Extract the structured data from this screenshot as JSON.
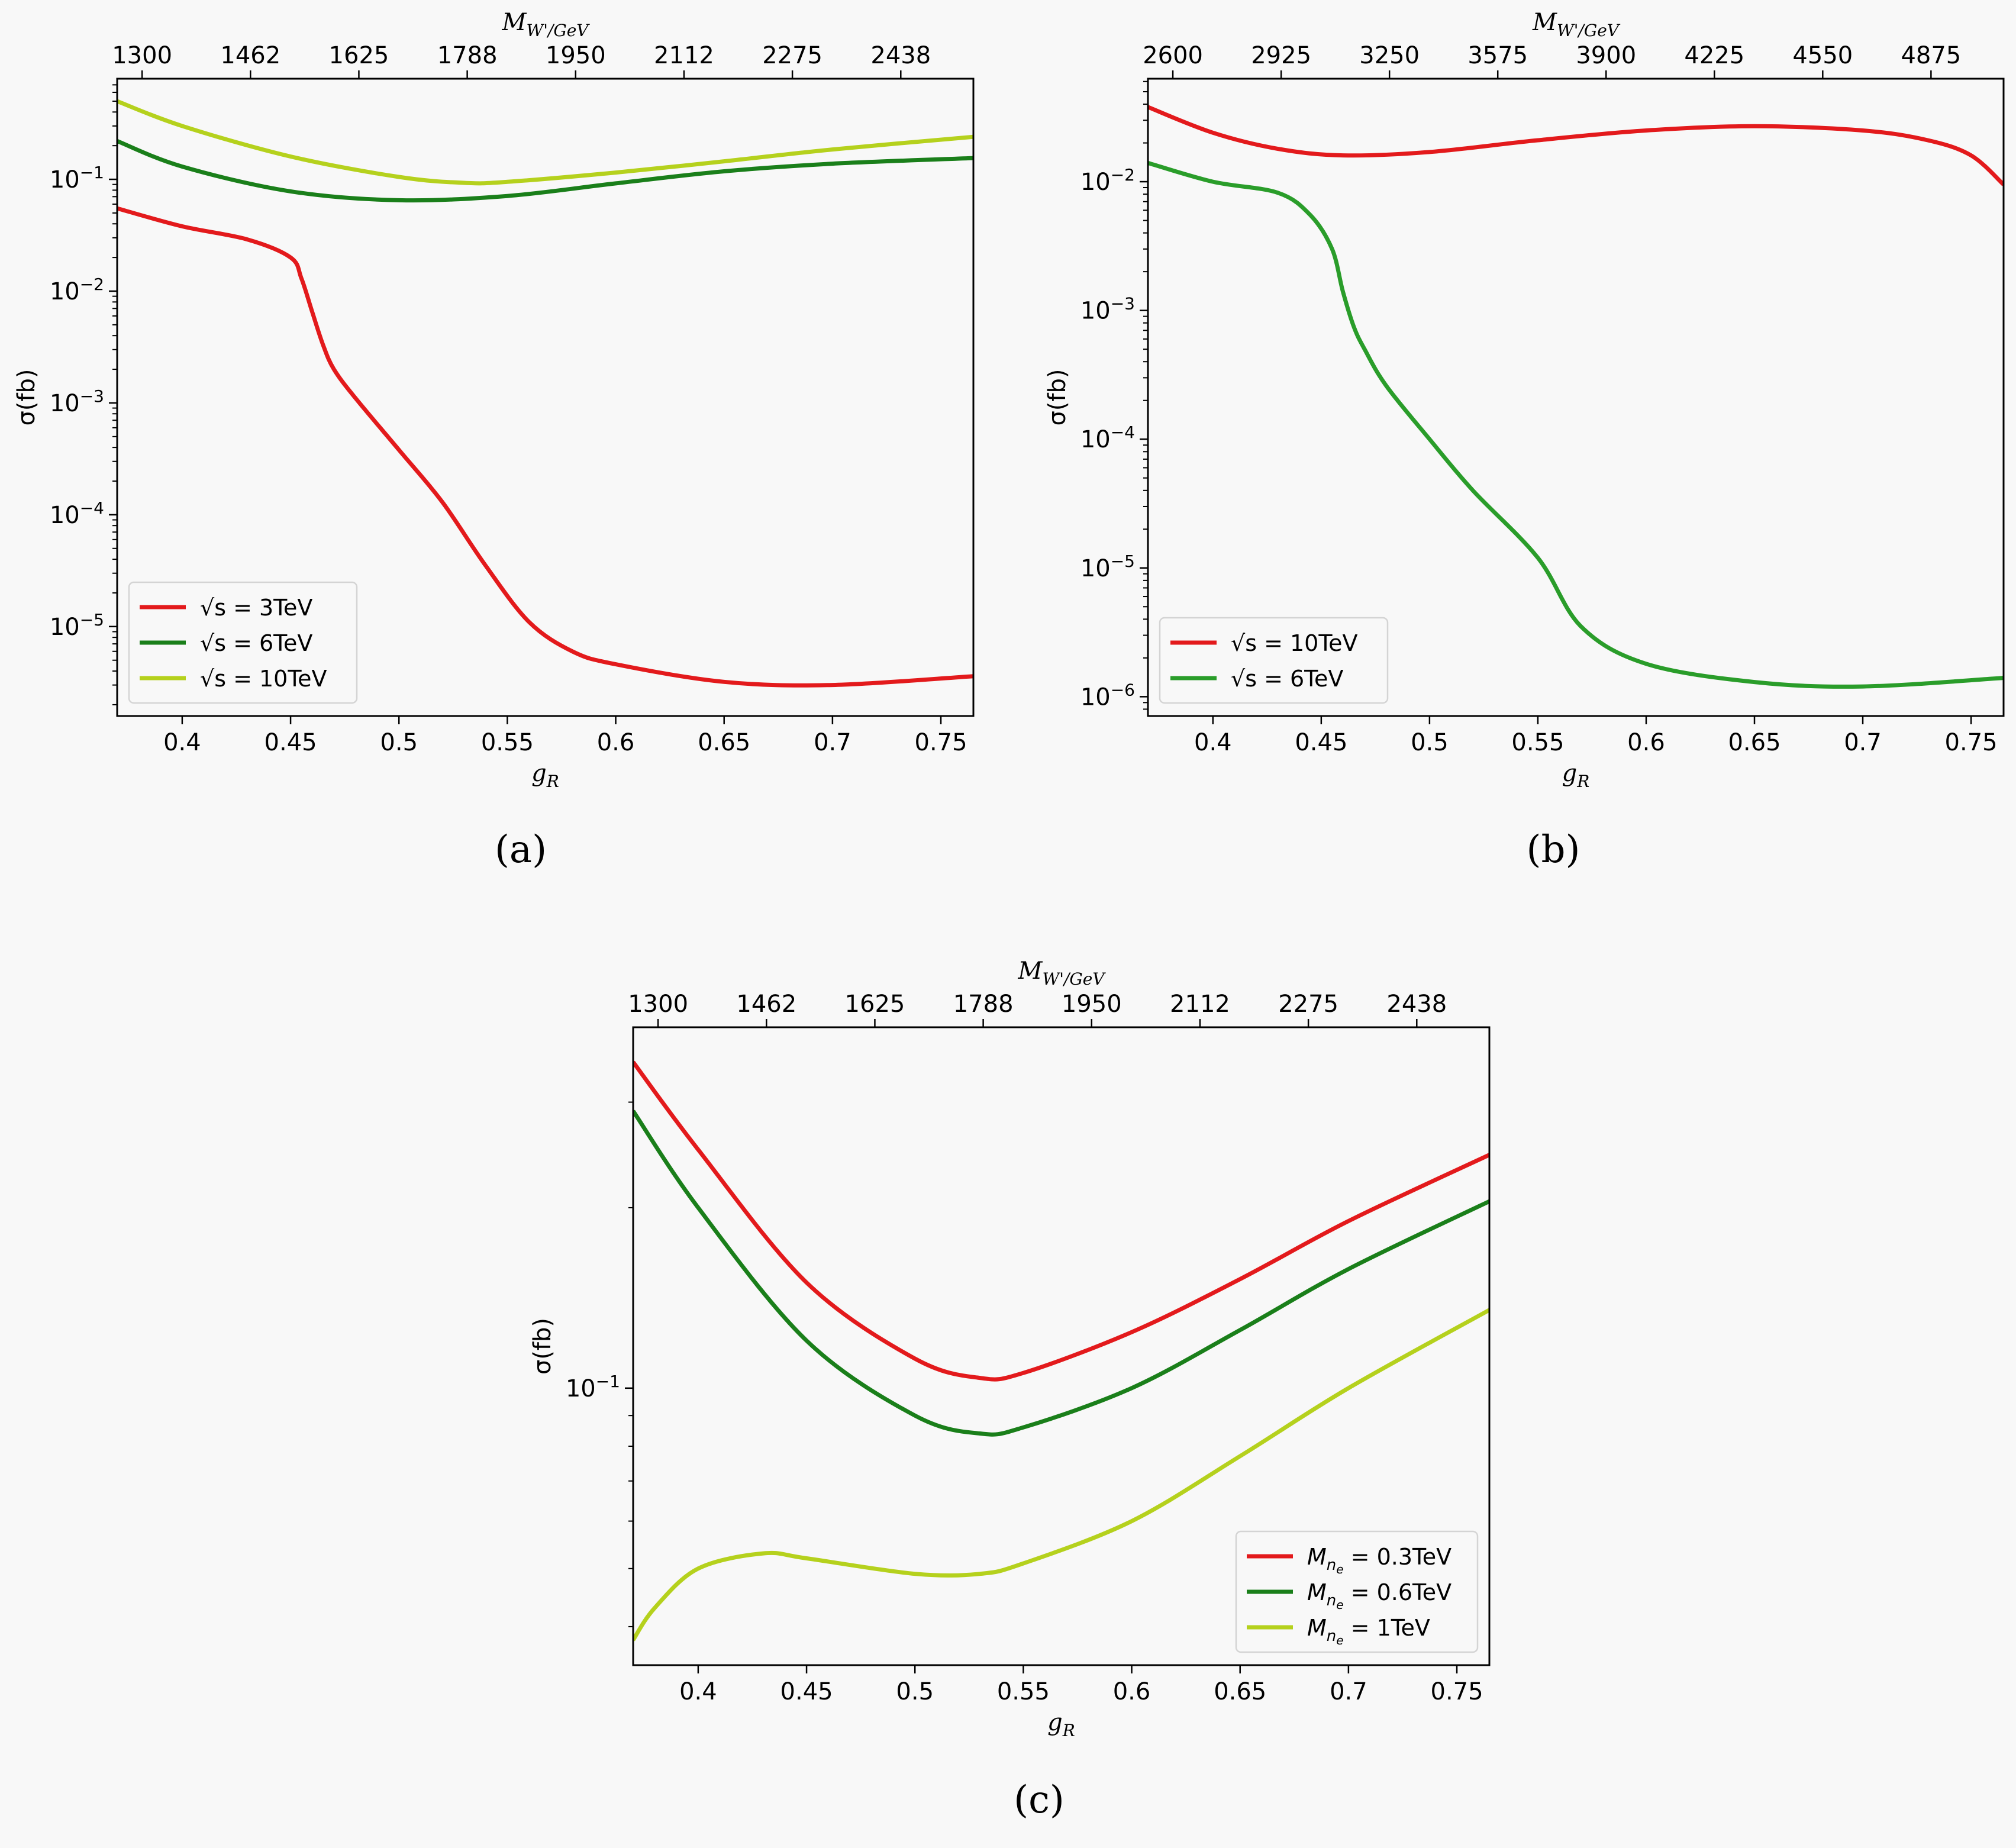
{
  "chart_data": [
    {
      "id": "a",
      "type": "line",
      "caption": "(a)",
      "xlabel": "g_R",
      "x2label": "M_W'/GeV",
      "ylabel": "σ(fb)",
      "yscale": "log",
      "xlim": [
        0.37,
        0.765
      ],
      "ylim_exp": [
        -5.8,
        -0.1
      ],
      "xticks": [
        "0.4",
        "0.45",
        "0.5",
        "0.55",
        "0.6",
        "0.65",
        "0.7",
        "0.75"
      ],
      "x2ticks": [
        "1300",
        "1462",
        "1625",
        "1788",
        "1950",
        "2112",
        "2275",
        "2438"
      ],
      "yticks_exp": [
        "-5",
        "-4",
        "-3",
        "-2",
        "-1"
      ],
      "legend_position": "lower-left",
      "series": [
        {
          "name": "√s = 3TeV",
          "color": "#e31a1c",
          "x": [
            0.37,
            0.4,
            0.43,
            0.45,
            0.455,
            0.46,
            0.465,
            0.47,
            0.48,
            0.5,
            0.52,
            0.54,
            0.56,
            0.58,
            0.6,
            0.65,
            0.7,
            0.765
          ],
          "y": [
            0.055,
            0.038,
            0.029,
            0.02,
            0.013,
            0.0065,
            0.0033,
            0.002,
            0.0011,
            0.00038,
            0.00013,
            3.5e-05,
            1.1e-05,
            6e-06,
            4.6e-06,
            3.2e-06,
            3e-06,
            3.6e-06
          ]
        },
        {
          "name": "√s = 6TeV",
          "color": "#1a7f1a",
          "x": [
            0.37,
            0.4,
            0.45,
            0.5,
            0.55,
            0.6,
            0.65,
            0.7,
            0.765
          ],
          "y": [
            0.22,
            0.13,
            0.078,
            0.065,
            0.071,
            0.092,
            0.118,
            0.138,
            0.155
          ]
        },
        {
          "name": "√s = 10TeV",
          "color": "#b5d11d",
          "x": [
            0.37,
            0.4,
            0.45,
            0.5,
            0.53,
            0.55,
            0.6,
            0.65,
            0.7,
            0.765
          ],
          "y": [
            0.5,
            0.3,
            0.16,
            0.105,
            0.093,
            0.095,
            0.115,
            0.145,
            0.185,
            0.24
          ]
        }
      ]
    },
    {
      "id": "b",
      "type": "line",
      "caption": "(b)",
      "xlabel": "g_R",
      "x2label": "M_W'/GeV",
      "ylabel": "σ(fb)",
      "yscale": "log",
      "xlim": [
        0.37,
        0.765
      ],
      "ylim_exp": [
        -6.15,
        -1.2
      ],
      "xticks": [
        "0.4",
        "0.45",
        "0.5",
        "0.55",
        "0.6",
        "0.65",
        "0.7",
        "0.75"
      ],
      "x2ticks": [
        "2600",
        "2925",
        "3250",
        "3575",
        "3900",
        "4225",
        "4550",
        "4875"
      ],
      "yticks_exp": [
        "-6",
        "-5",
        "-4",
        "-3",
        "-2"
      ],
      "legend_position": "lower-left",
      "series": [
        {
          "name": "√s = 10TeV",
          "color": "#e31a1c",
          "x": [
            0.37,
            0.4,
            0.43,
            0.46,
            0.5,
            0.55,
            0.6,
            0.65,
            0.7,
            0.73,
            0.75,
            0.765
          ],
          "y": [
            0.038,
            0.024,
            0.018,
            0.016,
            0.017,
            0.021,
            0.025,
            0.027,
            0.025,
            0.021,
            0.016,
            0.0095
          ]
        },
        {
          "name": "√s = 6TeV",
          "color": "#2a9d2a",
          "x": [
            0.37,
            0.4,
            0.43,
            0.445,
            0.455,
            0.46,
            0.465,
            0.47,
            0.48,
            0.5,
            0.52,
            0.55,
            0.57,
            0.6,
            0.65,
            0.7,
            0.765
          ],
          "y": [
            0.014,
            0.01,
            0.0082,
            0.0055,
            0.003,
            0.0014,
            0.00075,
            0.0005,
            0.00026,
            0.0001,
            4e-05,
            1.2e-05,
            3.5e-06,
            1.8e-06,
            1.3e-06,
            1.2e-06,
            1.4e-06
          ]
        }
      ]
    },
    {
      "id": "c",
      "type": "line",
      "caption": "(c)",
      "xlabel": "g_R",
      "x2label": "M_W'/GeV",
      "ylabel": "σ(fb)",
      "yscale": "log",
      "xlim": [
        0.37,
        0.765
      ],
      "ylim": [
        0.0345,
        0.4
      ],
      "xticks": [
        "0.4",
        "0.45",
        "0.5",
        "0.55",
        "0.6",
        "0.65",
        "0.7",
        "0.75"
      ],
      "x2ticks": [
        "1300",
        "1462",
        "1625",
        "1788",
        "1950",
        "2112",
        "2275",
        "2438"
      ],
      "yticks_exp": [
        "-1"
      ],
      "legend_position": "lower-right",
      "series": [
        {
          "name": "M_ne = 0.3TeV",
          "color": "#e31a1c",
          "x": [
            0.37,
            0.4,
            0.45,
            0.5,
            0.53,
            0.55,
            0.6,
            0.65,
            0.7,
            0.765
          ],
          "y": [
            0.35,
            0.25,
            0.15,
            0.112,
            0.104,
            0.106,
            0.124,
            0.152,
            0.19,
            0.245
          ]
        },
        {
          "name": "M_ne = 0.6TeV",
          "color": "#1a7f1a",
          "x": [
            0.37,
            0.4,
            0.45,
            0.5,
            0.53,
            0.55,
            0.6,
            0.65,
            0.7,
            0.765
          ],
          "y": [
            0.29,
            0.2,
            0.12,
            0.09,
            0.084,
            0.086,
            0.1,
            0.125,
            0.158,
            0.205
          ]
        },
        {
          "name": "M_ne = 1TeV",
          "color": "#b5d11d",
          "x": [
            0.37,
            0.38,
            0.4,
            0.43,
            0.45,
            0.5,
            0.53,
            0.55,
            0.6,
            0.65,
            0.7,
            0.765
          ],
          "y": [
            0.038,
            0.043,
            0.05,
            0.053,
            0.052,
            0.049,
            0.049,
            0.051,
            0.06,
            0.077,
            0.1,
            0.135
          ]
        }
      ]
    }
  ]
}
